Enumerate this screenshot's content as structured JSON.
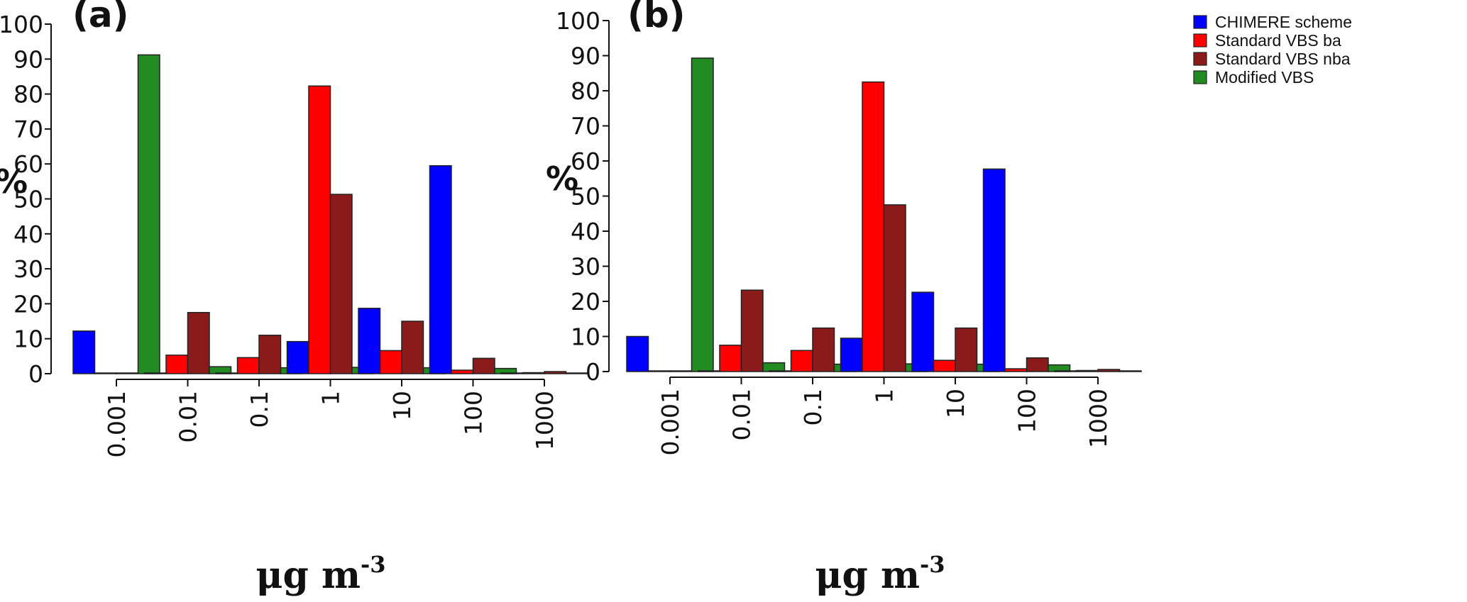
{
  "chart_data": [
    {
      "type": "bar",
      "panel": "(a)",
      "ylabel": "%",
      "xlabel": "μg m",
      "xlabel_superscript": "-3",
      "ylim": [
        0,
        100
      ],
      "yticks": [
        "0",
        "10",
        "20",
        "30",
        "40",
        "50",
        "60",
        "70",
        "80",
        "90",
        "100"
      ],
      "categories": [
        "0.001",
        "0.01",
        "0.1",
        "1",
        "10",
        "100",
        "1000"
      ],
      "series": [
        {
          "name": "CHIMERE scheme",
          "color": "#0000ff",
          "values": [
            12.2,
            0.2,
            0.1,
            9.2,
            18.7,
            59.5,
            0.1
          ]
        },
        {
          "name": "Standard VBS ba",
          "color": "#ff0000",
          "values": [
            0,
            5.3,
            4.6,
            82.3,
            6.6,
            1.0,
            0.3
          ]
        },
        {
          "name": "Standard VBS nba",
          "color": "#8b1a1a",
          "values": [
            0,
            17.5,
            11.0,
            51.3,
            15.0,
            4.4,
            0.6
          ]
        },
        {
          "name": "Modified VBS",
          "color": "#228b22",
          "values": [
            91.2,
            2.0,
            1.7,
            1.8,
            1.7,
            1.5,
            0
          ]
        }
      ]
    },
    {
      "type": "bar",
      "panel": "(b)",
      "ylabel": "%",
      "xlabel": "μg m",
      "xlabel_superscript": "-3",
      "ylim": [
        0,
        100
      ],
      "yticks": [
        "0",
        "10",
        "20",
        "30",
        "40",
        "50",
        "60",
        "70",
        "80",
        "90",
        "100"
      ],
      "categories": [
        "0.001",
        "0.01",
        "0.1",
        "1",
        "10",
        "100",
        "1000"
      ],
      "legend_position": "top-right",
      "series": [
        {
          "name": "CHIMERE scheme",
          "color": "#0000ff",
          "values": [
            10.0,
            0.2,
            0.1,
            9.5,
            22.6,
            57.7,
            0.1
          ]
        },
        {
          "name": "Standard VBS ba",
          "color": "#ff0000",
          "values": [
            0,
            7.5,
            6.0,
            82.5,
            3.2,
            0.8,
            0.3
          ]
        },
        {
          "name": "Standard VBS nba",
          "color": "#8b1a1a",
          "values": [
            0,
            23.2,
            12.4,
            47.5,
            12.4,
            3.9,
            0.6
          ]
        },
        {
          "name": "Modified VBS",
          "color": "#228b22",
          "values": [
            89.3,
            2.5,
            2.1,
            2.2,
            2.1,
            1.9,
            0
          ]
        }
      ]
    }
  ]
}
